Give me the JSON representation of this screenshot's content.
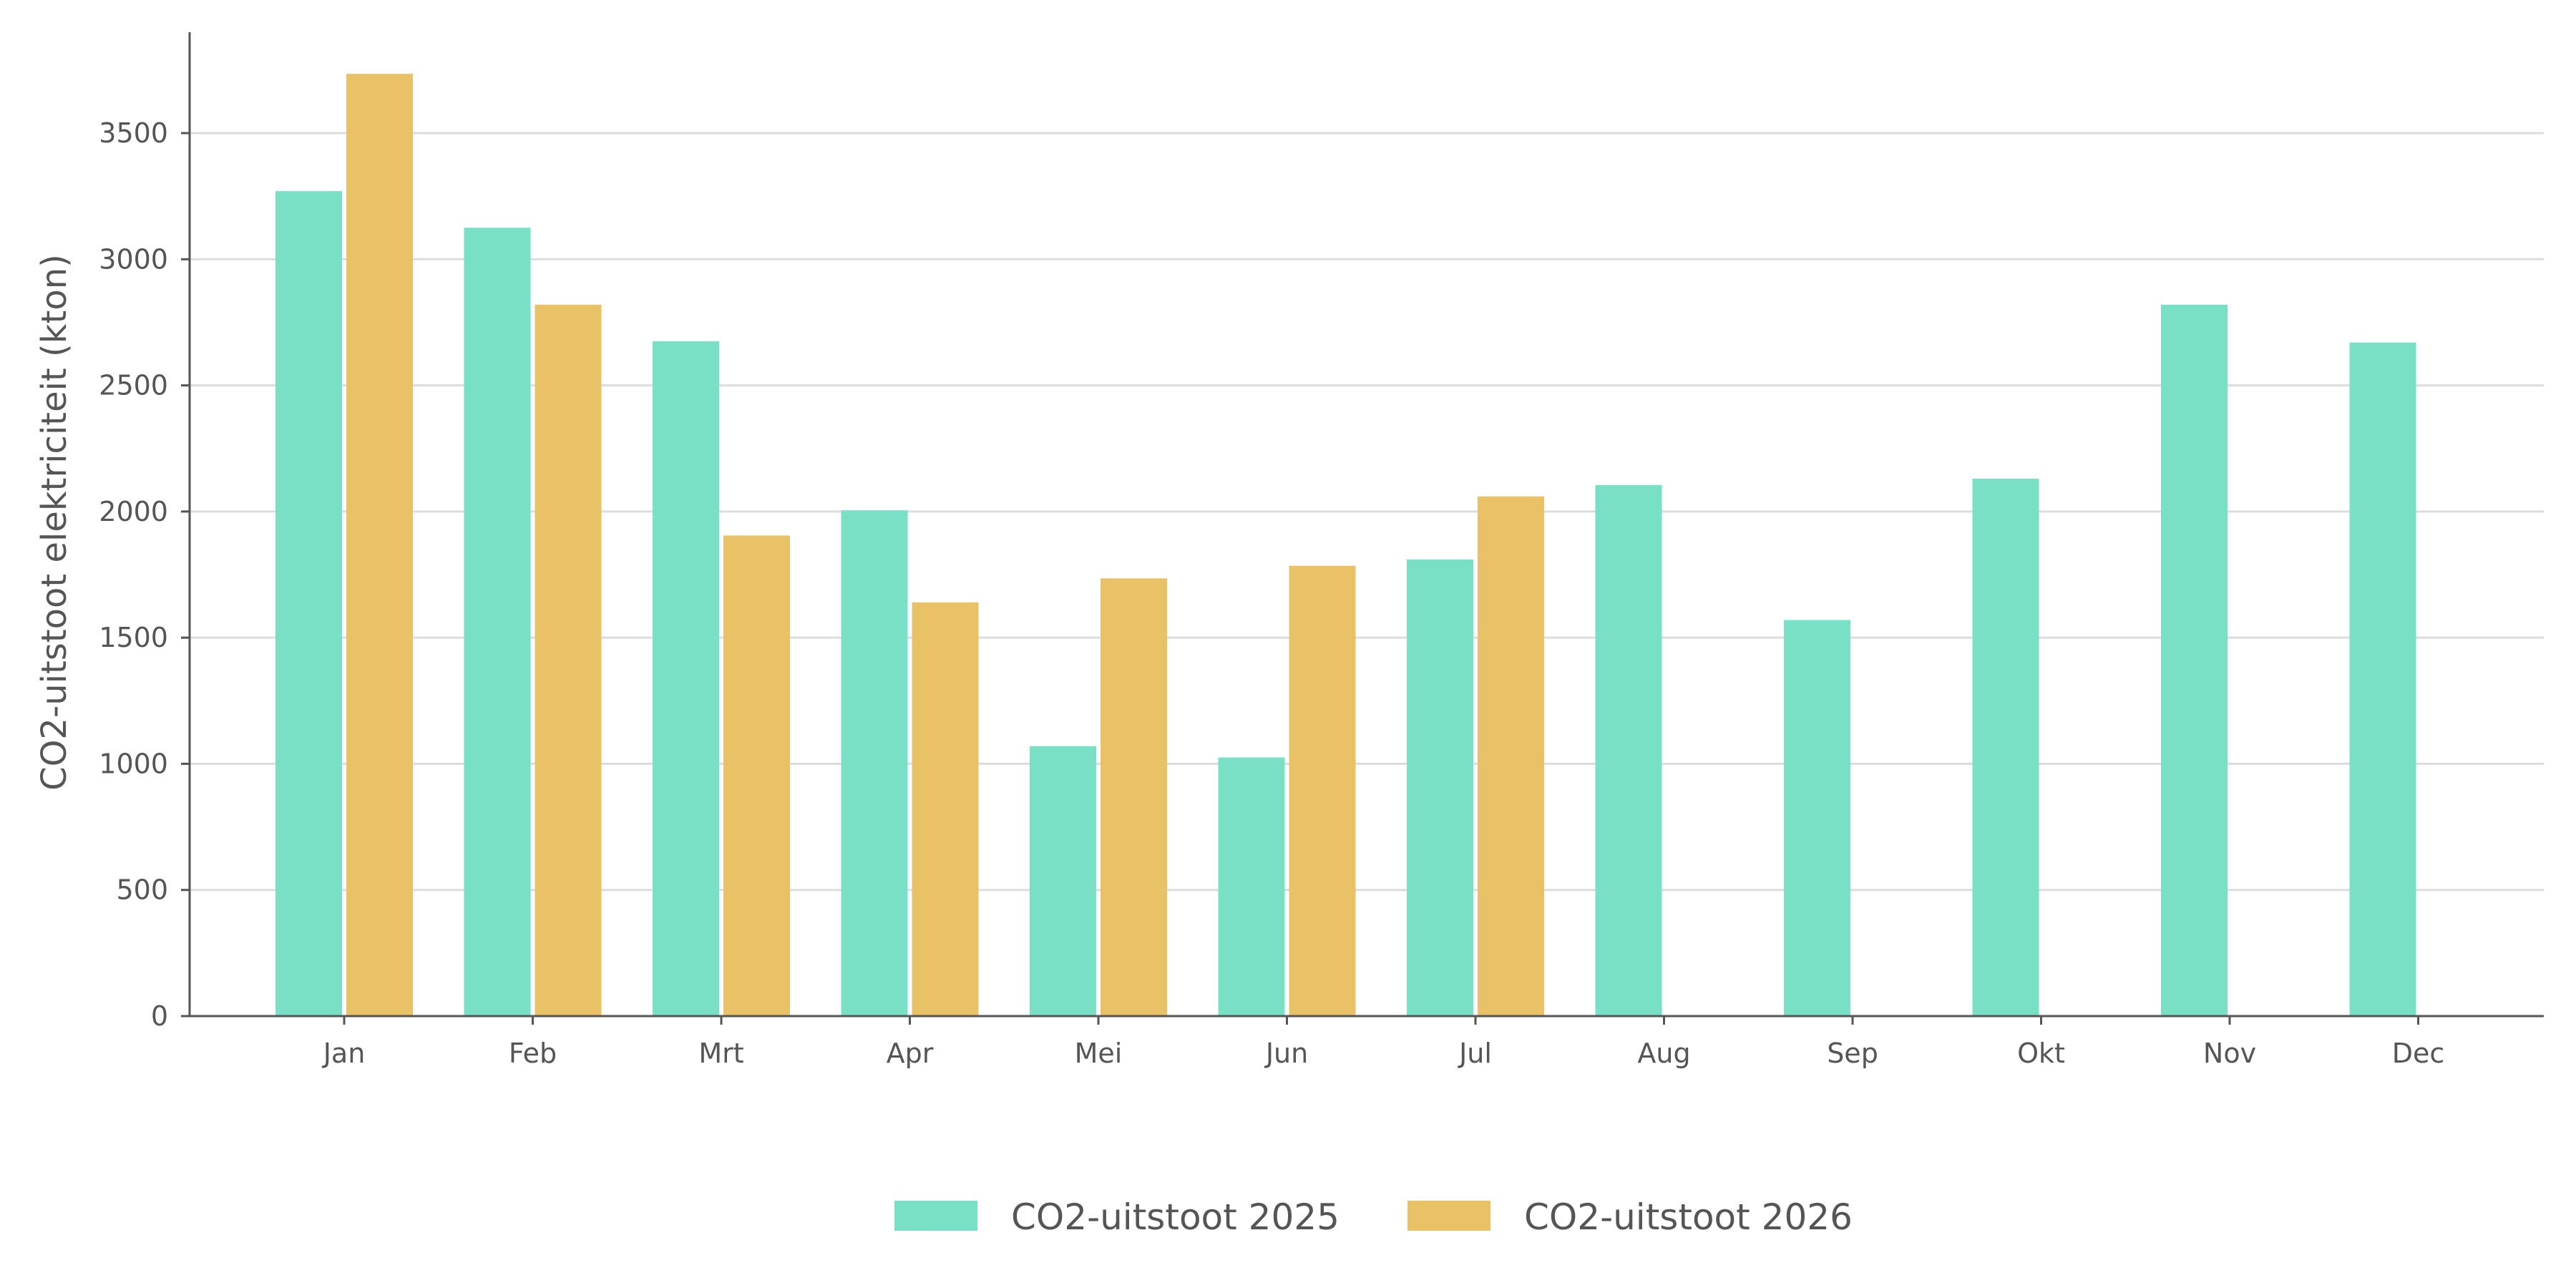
{
  "chart_data": {
    "type": "bar",
    "ylabel": "CO2-uitstoot elektriciteit (kton)",
    "ylim": [
      0,
      3900
    ],
    "yticks": [
      0,
      500,
      1000,
      1500,
      2000,
      2500,
      3000,
      3500
    ],
    "grid": true,
    "legend_position": "bottom-center",
    "categories": [
      "Jan",
      "Feb",
      "Mrt",
      "Apr",
      "Mei",
      "Jun",
      "Jul",
      "Aug",
      "Sep",
      "Okt",
      "Nov",
      "Dec"
    ],
    "series": [
      {
        "name": "CO2-uitstoot 2025",
        "color": "#79e0c6",
        "values": [
          3270,
          3125,
          2675,
          2005,
          1070,
          1025,
          1810,
          2105,
          1570,
          2130,
          2820,
          2670
        ]
      },
      {
        "name": "CO2-uitstoot 2026",
        "color": "#e9c166",
        "values": [
          3735,
          2820,
          1905,
          1640,
          1735,
          1785,
          2060,
          null,
          null,
          null,
          null,
          null
        ]
      }
    ]
  }
}
